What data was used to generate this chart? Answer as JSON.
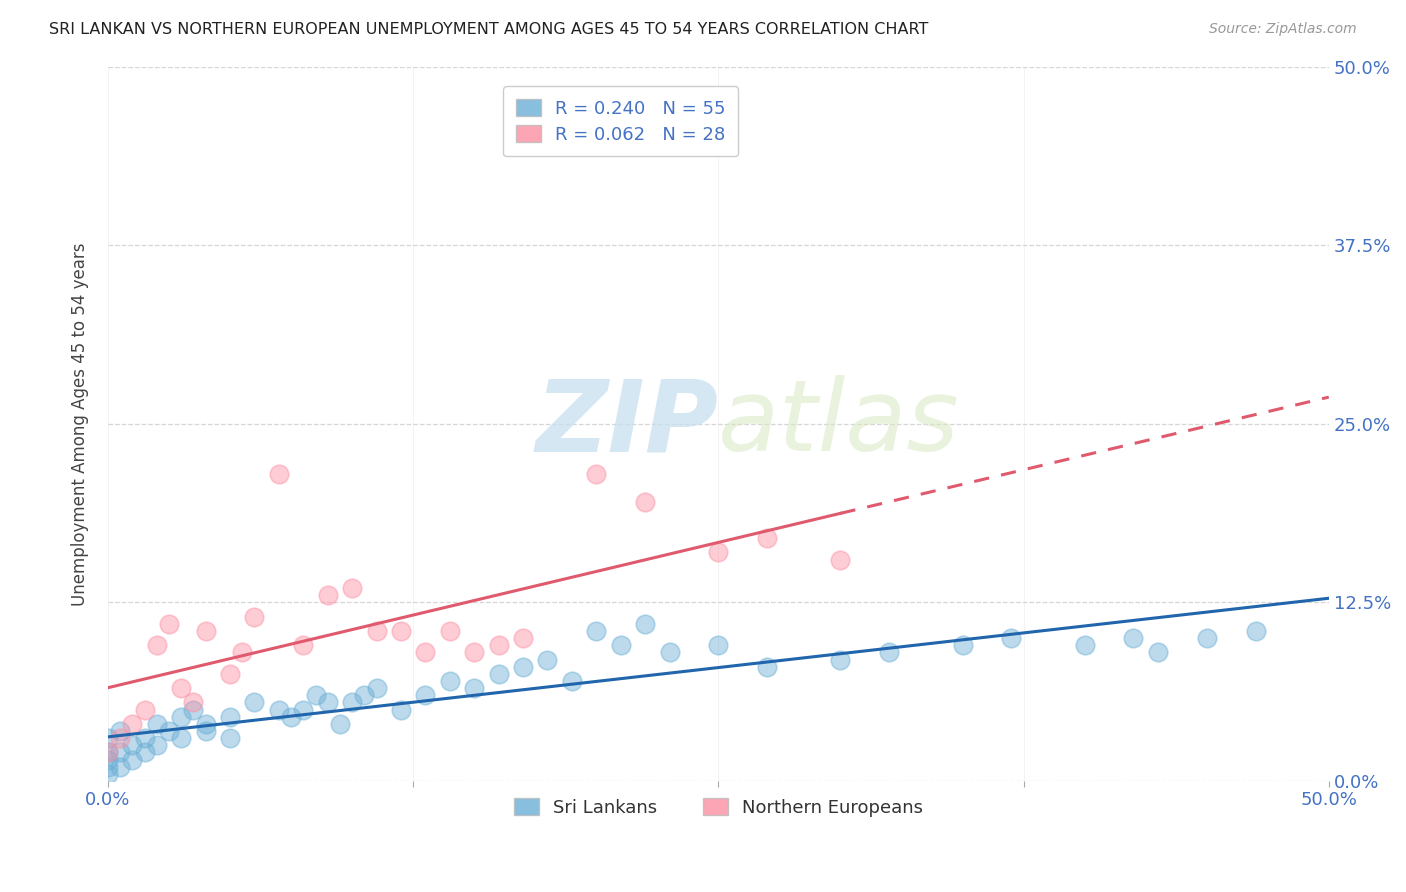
{
  "title": "SRI LANKAN VS NORTHERN EUROPEAN UNEMPLOYMENT AMONG AGES 45 TO 54 YEARS CORRELATION CHART",
  "source": "Source: ZipAtlas.com",
  "ylabel": "Unemployment Among Ages 45 to 54 years",
  "yticks": [
    "0.0%",
    "12.5%",
    "25.0%",
    "37.5%",
    "50.0%"
  ],
  "ytick_vals": [
    0,
    12.5,
    25.0,
    37.5,
    50.0
  ],
  "xlim": [
    0,
    50
  ],
  "ylim": [
    0,
    50
  ],
  "legend_sri": "Sri Lankans",
  "legend_north": "Northern Europeans",
  "sri_R": "0.240",
  "sri_N": "55",
  "north_R": "0.062",
  "north_N": "28",
  "blue_color": "#6baed6",
  "pink_color": "#fc8fa3",
  "blue_line_color": "#2166ac",
  "pink_line_color": "#e05a6e",
  "watermark_zip": "ZIP",
  "watermark_atlas": "atlas",
  "sri_x": [
    0.0,
    0.0,
    0.0,
    0.0,
    0.0,
    0.5,
    0.5,
    0.5,
    1.0,
    1.0,
    1.5,
    1.5,
    2.0,
    2.0,
    2.5,
    3.0,
    3.0,
    3.5,
    4.0,
    4.0,
    5.0,
    5.0,
    6.0,
    7.0,
    7.5,
    8.0,
    8.5,
    9.0,
    9.5,
    10.0,
    10.5,
    11.0,
    12.0,
    13.0,
    14.0,
    15.0,
    16.0,
    17.0,
    18.0,
    19.0,
    20.0,
    21.0,
    22.0,
    23.0,
    25.0,
    27.0,
    30.0,
    32.0,
    35.0,
    37.0,
    40.0,
    42.0,
    43.0,
    45.0,
    47.0
  ],
  "sri_y": [
    1.0,
    2.0,
    3.0,
    1.5,
    0.5,
    2.0,
    3.5,
    1.0,
    2.5,
    1.5,
    3.0,
    2.0,
    4.0,
    2.5,
    3.5,
    4.5,
    3.0,
    5.0,
    4.0,
    3.5,
    4.5,
    3.0,
    5.5,
    5.0,
    4.5,
    5.0,
    6.0,
    5.5,
    4.0,
    5.5,
    6.0,
    6.5,
    5.0,
    6.0,
    7.0,
    6.5,
    7.5,
    8.0,
    8.5,
    7.0,
    10.5,
    9.5,
    11.0,
    9.0,
    9.5,
    8.0,
    8.5,
    9.0,
    9.5,
    10.0,
    9.5,
    10.0,
    9.0,
    10.0,
    10.5
  ],
  "north_x": [
    0.0,
    0.5,
    1.0,
    1.5,
    2.0,
    2.5,
    3.0,
    3.5,
    4.0,
    5.0,
    5.5,
    6.0,
    7.0,
    8.0,
    9.0,
    10.0,
    11.0,
    12.0,
    13.0,
    14.0,
    15.0,
    16.0,
    17.0,
    20.0,
    22.0,
    25.0,
    27.0,
    30.0
  ],
  "north_y": [
    2.0,
    3.0,
    4.0,
    5.0,
    9.5,
    11.0,
    6.5,
    5.5,
    10.5,
    7.5,
    9.0,
    11.5,
    21.5,
    9.5,
    13.0,
    13.5,
    10.5,
    10.5,
    9.0,
    10.5,
    9.0,
    9.5,
    10.0,
    21.5,
    19.5,
    16.0,
    17.0,
    15.5
  ]
}
